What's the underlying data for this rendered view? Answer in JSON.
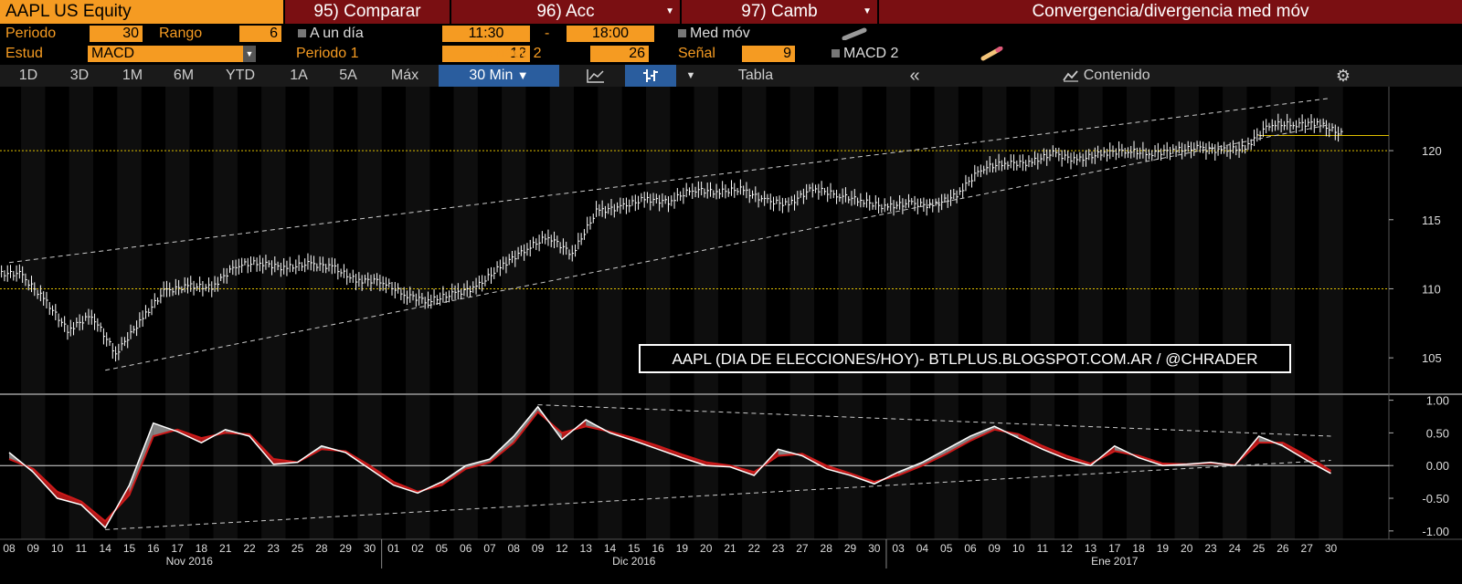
{
  "header": {
    "security": "AAPL US Equity",
    "compare": "95) Comparar",
    "actions": "96) Acc",
    "change": "97) Camb",
    "study_title": "Convergencia/divergencia med móv"
  },
  "params": {
    "period_label": "Periodo",
    "period_value": "30",
    "range_label": "Rango",
    "range_value": "6",
    "intraday_label": "A un día",
    "time_from": "11:30",
    "time_sep": "-",
    "time_to": "18:00",
    "ma_label": "Med móv",
    "study_label": "Estud",
    "study_value": "MACD",
    "period1_label": "Periodo 1",
    "period1_value": "12",
    "period2_label": "Periodo 2",
    "period2_value": "26",
    "signal_label": "Señal",
    "signal_value": "9",
    "macd2_label": "MACD 2"
  },
  "toolbar": {
    "ranges": [
      "1D",
      "3D",
      "1M",
      "6M",
      "YTD",
      "1A",
      "5A",
      "Máx"
    ],
    "interval": "30 Min",
    "table": "Tabla",
    "collapse": "«",
    "content": "Contenido",
    "settings": "⚙"
  },
  "annotation": "AAPL (DIA DE ELECCIONES/HOY)- BTLPLUS.BLOGSPOT.COM.AR / @CHRADER",
  "colors": {
    "orange": "#f59b22",
    "darkred": "#7a0f12",
    "macd": "#ffffff",
    "signal": "#cc1a1a",
    "hist": "#9a9a9a",
    "level": "#e0c000",
    "trend": "#cccccc"
  },
  "chart_data": [
    {
      "type": "bar",
      "title": "",
      "ylim": [
        102.5,
        124.3
      ],
      "yticks": [
        105,
        110,
        115,
        120
      ],
      "reference_lines": [
        110,
        120
      ],
      "last_price": 121.1,
      "dates": [
        "08",
        "09",
        "10",
        "11",
        "14",
        "15",
        "16",
        "17",
        "18",
        "21",
        "22",
        "23",
        "25",
        "28",
        "29",
        "30",
        "01",
        "02",
        "05",
        "06",
        "07",
        "08",
        "09",
        "12",
        "13",
        "14",
        "15",
        "16",
        "19",
        "20",
        "21",
        "22",
        "23",
        "27",
        "28",
        "29",
        "30",
        "03",
        "04",
        "05",
        "06",
        "09",
        "10",
        "11",
        "12",
        "13",
        "17",
        "18",
        "19",
        "20",
        "23",
        "24",
        "25",
        "26",
        "27",
        "30"
      ],
      "months": [
        {
          "label": "Nov 2016",
          "start": 0,
          "end": 15
        },
        {
          "label": "Dic 2016",
          "start": 16,
          "end": 36
        },
        {
          "label": "Ene 2017",
          "start": 37,
          "end": 55
        }
      ],
      "close": [
        111.1,
        109.3,
        107.0,
        108.1,
        105.3,
        107.6,
        109.8,
        110.2,
        110.1,
        111.7,
        111.9,
        111.5,
        111.8,
        111.6,
        110.6,
        110.6,
        109.6,
        109.1,
        109.6,
        110.1,
        111.6,
        112.8,
        113.8,
        112.5,
        115.6,
        115.9,
        116.5,
        116.3,
        117.2,
        117.0,
        117.2,
        116.4,
        116.1,
        117.3,
        116.8,
        116.4,
        115.9,
        116.2,
        116.0,
        116.8,
        118.7,
        119.1,
        119.1,
        119.8,
        119.3,
        119.8,
        120.0,
        119.8,
        120.0,
        120.2,
        120.0,
        120.2,
        121.9,
        121.9,
        122.0,
        121.2
      ],
      "trendlines": [
        {
          "from": [
            0,
            111.9
          ],
          "to": [
            55,
            123.8
          ]
        },
        {
          "from": [
            4,
            104.1
          ],
          "to": [
            55,
            121.9
          ]
        }
      ]
    },
    {
      "type": "line",
      "title": "",
      "ylim": [
        -1.1,
        1.05
      ],
      "yticks": [
        1.0,
        0.5,
        0.0,
        -0.5,
        -1.0
      ],
      "ytick_labels": [
        "1.00",
        "0.50",
        "0.00",
        "-0.50",
        "-1.00"
      ],
      "series": [
        {
          "values": [
            0.2,
            -0.1,
            -0.5,
            -0.6,
            -0.95,
            -0.3,
            0.65,
            0.52,
            0.35,
            0.55,
            0.45,
            0.02,
            0.05,
            0.3,
            0.2,
            -0.05,
            -0.3,
            -0.42,
            -0.25,
            0.0,
            0.1,
            0.45,
            0.9,
            0.4,
            0.7,
            0.5,
            0.38,
            0.25,
            0.12,
            0.0,
            -0.02,
            -0.15,
            0.25,
            0.15,
            -0.05,
            -0.15,
            -0.28,
            -0.1,
            0.05,
            0.25,
            0.45,
            0.6,
            0.42,
            0.25,
            0.1,
            0.0,
            0.3,
            0.12,
            0.0,
            0.02,
            0.05,
            0.0,
            0.45,
            0.3,
            0.08,
            -0.12
          ]
        },
        {
          "values": [
            0.1,
            -0.05,
            -0.4,
            -0.55,
            -0.85,
            -0.45,
            0.45,
            0.55,
            0.42,
            0.5,
            0.48,
            0.1,
            0.05,
            0.25,
            0.22,
            0.0,
            -0.25,
            -0.4,
            -0.3,
            -0.05,
            0.05,
            0.35,
            0.82,
            0.5,
            0.6,
            0.52,
            0.42,
            0.3,
            0.17,
            0.05,
            0.0,
            -0.1,
            0.15,
            0.18,
            0.0,
            -0.12,
            -0.25,
            -0.15,
            0.0,
            0.18,
            0.38,
            0.55,
            0.48,
            0.3,
            0.15,
            0.03,
            0.22,
            0.15,
            0.03,
            0.02,
            0.04,
            0.01,
            0.35,
            0.35,
            0.15,
            -0.08
          ]
        }
      ],
      "trendlines": [
        {
          "from": [
            22,
            0.93
          ],
          "to": [
            55,
            0.45
          ]
        },
        {
          "from": [
            4,
            -0.98
          ],
          "to": [
            55,
            0.08
          ]
        }
      ]
    }
  ]
}
